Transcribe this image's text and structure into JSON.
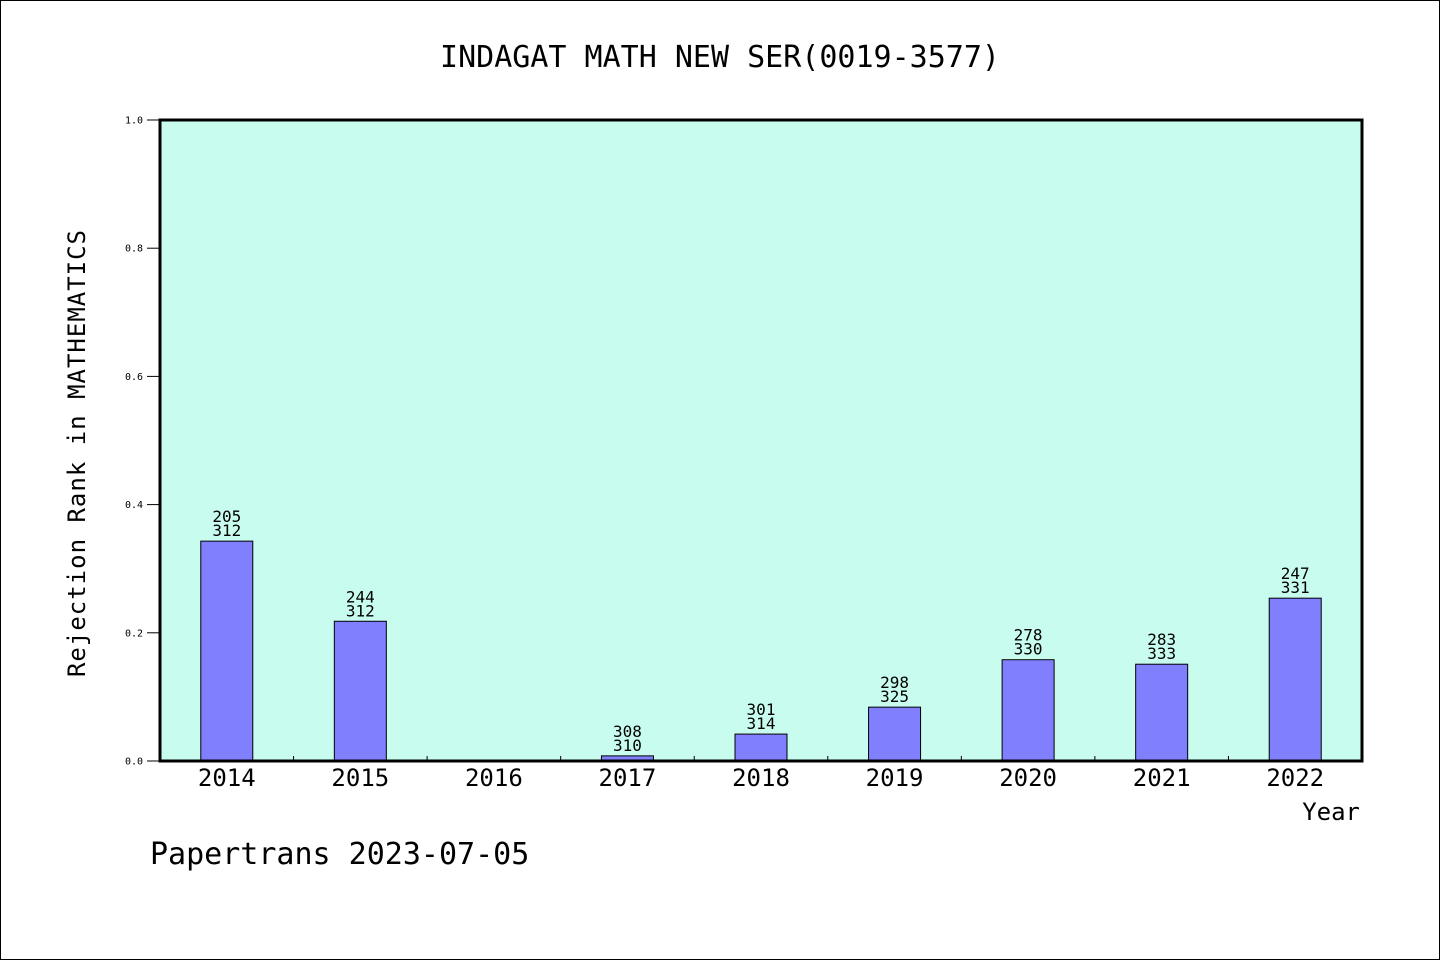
{
  "chart_data": {
    "type": "bar",
    "title": "INDAGAT MATH NEW SER(0019-3577)",
    "xlabel": "Year",
    "ylabel": "Rejection Rank in MATHEMATICS",
    "ylim": [
      0,
      1.0
    ],
    "yticks": [
      "0.0",
      "0.2",
      "0.4",
      "0.6",
      "0.8",
      "1.0"
    ],
    "categories": [
      "2014",
      "2015",
      "2016",
      "2017",
      "2018",
      "2019",
      "2020",
      "2021",
      "2022"
    ],
    "values": [
      0.343,
      0.218,
      null,
      0.008,
      0.042,
      0.084,
      0.158,
      0.151,
      0.254
    ],
    "bar_labels": [
      [
        "205",
        "312"
      ],
      [
        "244",
        "312"
      ],
      null,
      [
        "308",
        "310"
      ],
      [
        "301",
        "314"
      ],
      [
        "298",
        "325"
      ],
      [
        "278",
        "330"
      ],
      [
        "283",
        "333"
      ],
      [
        "247",
        "331"
      ]
    ],
    "grid": false,
    "colors": {
      "plot_background": "#c8fcef",
      "bar_fill": "#8080ff",
      "bar_stroke": "#000000"
    }
  },
  "footer": {
    "text": "Papertrans 2023-07-05"
  }
}
